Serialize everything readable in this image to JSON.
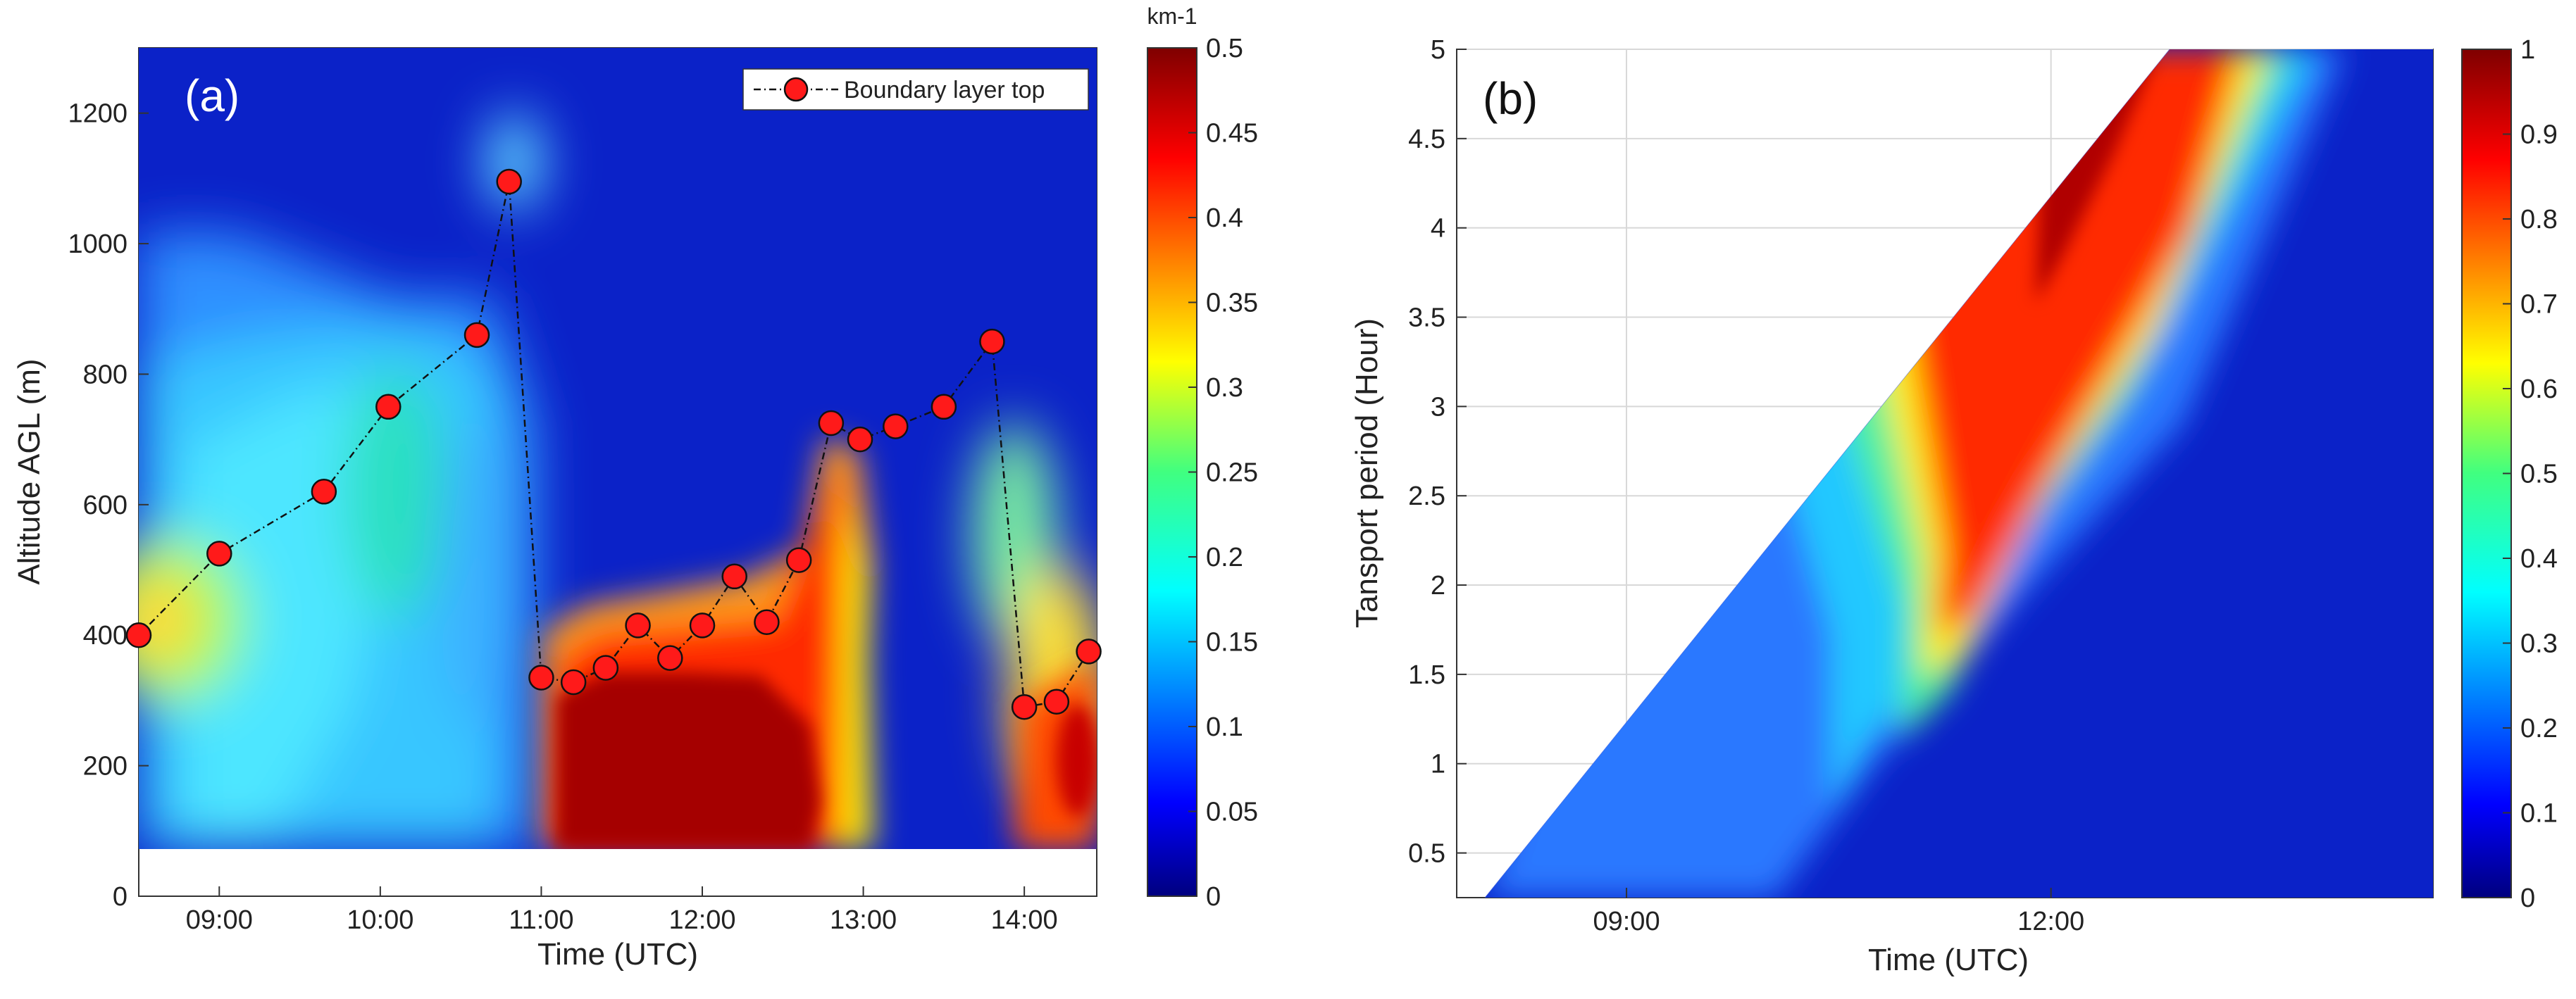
{
  "chart_data": [
    {
      "type": "heatmap",
      "panel_label": "(a)",
      "title": "",
      "xlabel": "Time (UTC)",
      "ylabel": "Altitude AGL (m)",
      "xlim": [
        8.5,
        14.45
      ],
      "ylim": [
        0,
        1300
      ],
      "x_ticks": [
        9,
        10,
        11,
        12,
        13,
        14
      ],
      "x_tick_labels": [
        "09:00",
        "10:00",
        "11:00",
        "12:00",
        "13:00",
        "14:00"
      ],
      "y_ticks": [
        0,
        200,
        400,
        600,
        800,
        1000,
        1200
      ],
      "y_tick_labels": [
        "0",
        "200",
        "400",
        "600",
        "800",
        "1000",
        "1200"
      ],
      "colorbar": {
        "unit": "km-1",
        "range": [
          0,
          0.5
        ],
        "ticks": [
          0,
          0.05,
          0.1,
          0.15,
          0.2,
          0.25,
          0.3,
          0.35,
          0.4,
          0.45,
          0.5
        ],
        "tick_labels": [
          "0",
          "0.05",
          "0.1",
          "0.15",
          "0.2",
          "0.25",
          "0.3",
          "0.35",
          "0.4",
          "0.45",
          "0.5"
        ]
      },
      "legend": {
        "label": "Boundary layer top",
        "placement": "top-right"
      },
      "series": [
        {
          "name": "Boundary layer top",
          "x": [
            8.5,
            9.0,
            9.65,
            10.05,
            10.6,
            10.8,
            11.0,
            11.2,
            11.4,
            11.6,
            11.8,
            12.0,
            12.2,
            12.4,
            12.6,
            12.8,
            12.98,
            13.2,
            13.5,
            13.8,
            14.0,
            14.2,
            14.4
          ],
          "y": [
            400,
            525,
            620,
            750,
            860,
            1095,
            335,
            328,
            350,
            415,
            365,
            415,
            490,
            420,
            515,
            725,
            700,
            720,
            750,
            850,
            290,
            298,
            375
          ]
        }
      ]
    },
    {
      "type": "heatmap",
      "panel_label": "(b)",
      "title": "",
      "xlabel": "Time (UTC)",
      "ylabel": "Tansport period (Hour)",
      "xlim": [
        7.8,
        14.7
      ],
      "ylim": [
        0.25,
        5
      ],
      "x_ticks": [
        9,
        12
      ],
      "x_tick_labels": [
        "09:00",
        "12:00"
      ],
      "y_ticks": [
        0.5,
        1,
        1.5,
        2,
        2.5,
        3,
        3.5,
        4,
        4.5,
        5
      ],
      "y_tick_labels": [
        "0.5",
        "1",
        "1.5",
        "2",
        "2.5",
        "3",
        "3.5",
        "4",
        "4.5",
        "5"
      ],
      "colorbar": {
        "range": [
          0,
          1
        ],
        "ticks": [
          0,
          0.1,
          0.2,
          0.3,
          0.4,
          0.5,
          0.6,
          0.7,
          0.8,
          0.9,
          1
        ],
        "tick_labels": [
          "0",
          "0.1",
          "0.2",
          "0.3",
          "0.4",
          "0.5",
          "0.6",
          "0.7",
          "0.8",
          "0.9",
          "1"
        ]
      }
    }
  ]
}
